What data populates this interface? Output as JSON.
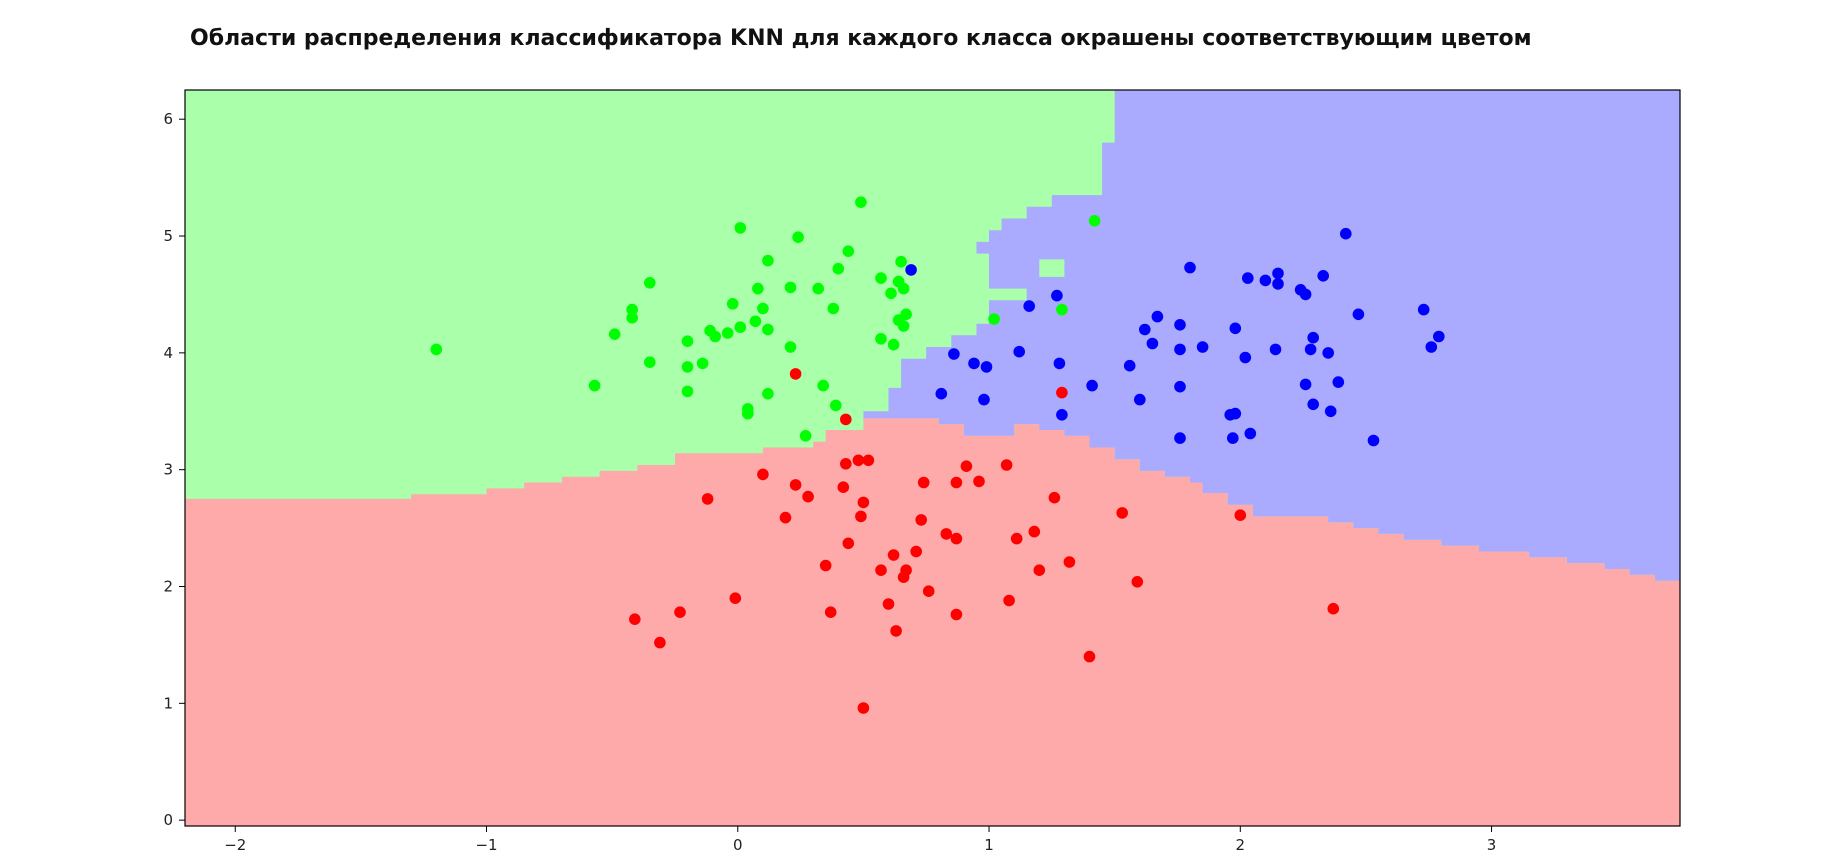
{
  "chart_data": {
    "type": "scatter",
    "title": "Области распределения классификатора KNN для каждого класса окрашены соответствующим цветом",
    "xlabel": "",
    "ylabel": "",
    "xlim": [
      -2.2,
      3.75
    ],
    "ylim": [
      -0.05,
      6.25
    ],
    "x_ticks": [
      -2,
      -1,
      0,
      1,
      2,
      3
    ],
    "y_ticks": [
      0,
      1,
      2,
      3,
      4,
      5,
      6
    ],
    "grid": false,
    "legend": "none",
    "region_colors": {
      "green": "#aaffaa",
      "red": "#ffaaaa",
      "blue": "#aaaaff"
    },
    "point_colors": {
      "green": "#00ff00",
      "red": "#ff0000",
      "blue": "#0000ff"
    },
    "regions": {
      "red_top_boundary": [
        [
          -2.2,
          2.75
        ],
        [
          -1.3,
          2.75
        ],
        [
          -1.3,
          2.79
        ],
        [
          -1.0,
          2.79
        ],
        [
          -1.0,
          2.84
        ],
        [
          -0.85,
          2.84
        ],
        [
          -0.85,
          2.89
        ],
        [
          -0.7,
          2.89
        ],
        [
          -0.7,
          2.94
        ],
        [
          -0.55,
          2.94
        ],
        [
          -0.55,
          2.99
        ],
        [
          -0.4,
          2.99
        ],
        [
          -0.4,
          3.04
        ],
        [
          -0.25,
          3.04
        ],
        [
          -0.25,
          3.14
        ],
        [
          0.1,
          3.14
        ],
        [
          0.1,
          3.19
        ],
        [
          0.3,
          3.19
        ],
        [
          0.3,
          3.24
        ],
        [
          0.35,
          3.24
        ],
        [
          0.35,
          3.34
        ],
        [
          0.5,
          3.34
        ],
        [
          0.5,
          3.44
        ],
        [
          0.8,
          3.44
        ],
        [
          0.8,
          3.39
        ],
        [
          0.9,
          3.39
        ],
        [
          0.9,
          3.29
        ],
        [
          1.1,
          3.29
        ],
        [
          1.1,
          3.39
        ],
        [
          1.2,
          3.39
        ],
        [
          1.2,
          3.34
        ],
        [
          1.3,
          3.34
        ],
        [
          1.3,
          3.29
        ],
        [
          1.4,
          3.29
        ],
        [
          1.4,
          3.19
        ],
        [
          1.5,
          3.19
        ],
        [
          1.5,
          3.09
        ],
        [
          1.6,
          3.09
        ],
        [
          1.6,
          2.99
        ],
        [
          1.7,
          2.99
        ],
        [
          1.7,
          2.94
        ],
        [
          1.8,
          2.94
        ],
        [
          1.8,
          2.89
        ],
        [
          1.85,
          2.89
        ],
        [
          1.85,
          2.8
        ],
        [
          1.95,
          2.8
        ],
        [
          1.95,
          2.7
        ],
        [
          2.05,
          2.7
        ],
        [
          2.05,
          2.6
        ],
        [
          2.35,
          2.6
        ],
        [
          2.35,
          2.55
        ],
        [
          2.45,
          2.55
        ],
        [
          2.45,
          2.5
        ],
        [
          2.55,
          2.5
        ],
        [
          2.55,
          2.45
        ],
        [
          2.65,
          2.45
        ],
        [
          2.65,
          2.4
        ],
        [
          2.8,
          2.4
        ],
        [
          2.8,
          2.35
        ],
        [
          2.95,
          2.35
        ],
        [
          2.95,
          2.3
        ],
        [
          3.15,
          2.3
        ],
        [
          3.15,
          2.25
        ],
        [
          3.3,
          2.25
        ],
        [
          3.3,
          2.2
        ],
        [
          3.45,
          2.2
        ],
        [
          3.45,
          2.15
        ],
        [
          3.55,
          2.15
        ],
        [
          3.55,
          2.1
        ],
        [
          3.65,
          2.1
        ],
        [
          3.65,
          2.05
        ],
        [
          3.75,
          2.05
        ]
      ],
      "blue_left_boundary": [
        [
          3.75,
          6.25
        ],
        [
          1.5,
          6.25
        ],
        [
          1.5,
          5.8
        ],
        [
          1.45,
          5.8
        ],
        [
          1.45,
          5.35
        ],
        [
          1.25,
          5.35
        ],
        [
          1.25,
          5.25
        ],
        [
          1.15,
          5.25
        ],
        [
          1.15,
          5.15
        ],
        [
          1.05,
          5.15
        ],
        [
          1.05,
          5.05
        ],
        [
          1.0,
          5.05
        ],
        [
          1.0,
          4.95
        ],
        [
          0.95,
          4.95
        ],
        [
          0.95,
          4.85
        ],
        [
          1.0,
          4.85
        ],
        [
          1.0,
          4.55
        ],
        [
          1.2,
          4.55
        ],
        [
          1.2,
          4.8
        ],
        [
          1.3,
          4.8
        ],
        [
          1.3,
          4.65
        ],
        [
          1.15,
          4.65
        ],
        [
          1.15,
          4.45
        ],
        [
          1.0,
          4.45
        ],
        [
          1.0,
          4.25
        ],
        [
          0.95,
          4.25
        ],
        [
          0.95,
          4.15
        ],
        [
          0.85,
          4.15
        ],
        [
          0.85,
          4.05
        ],
        [
          0.75,
          4.05
        ],
        [
          0.75,
          3.95
        ],
        [
          0.65,
          3.95
        ],
        [
          0.65,
          3.7
        ],
        [
          0.6,
          3.7
        ],
        [
          0.6,
          3.5
        ],
        [
          0.5,
          3.5
        ],
        [
          0.5,
          3.44
        ],
        [
          0.8,
          3.44
        ],
        [
          0.8,
          3.39
        ],
        [
          0.9,
          3.39
        ],
        [
          0.9,
          3.29
        ],
        [
          1.1,
          3.29
        ],
        [
          1.1,
          3.39
        ],
        [
          1.2,
          3.39
        ],
        [
          1.2,
          3.34
        ],
        [
          1.3,
          3.34
        ],
        [
          1.3,
          3.29
        ],
        [
          1.4,
          3.29
        ],
        [
          1.4,
          3.19
        ],
        [
          1.5,
          3.19
        ],
        [
          1.5,
          3.09
        ],
        [
          1.6,
          3.09
        ],
        [
          1.6,
          2.99
        ],
        [
          1.7,
          2.99
        ],
        [
          1.7,
          2.94
        ],
        [
          1.8,
          2.94
        ],
        [
          1.8,
          2.89
        ],
        [
          1.85,
          2.89
        ],
        [
          1.85,
          2.8
        ],
        [
          1.95,
          2.8
        ],
        [
          1.95,
          2.7
        ],
        [
          2.05,
          2.7
        ],
        [
          2.05,
          2.6
        ],
        [
          2.35,
          2.6
        ],
        [
          2.35,
          2.55
        ],
        [
          2.45,
          2.55
        ],
        [
          2.45,
          2.5
        ],
        [
          2.55,
          2.5
        ],
        [
          2.55,
          2.45
        ],
        [
          2.65,
          2.45
        ],
        [
          2.65,
          2.4
        ],
        [
          2.8,
          2.4
        ],
        [
          2.8,
          2.35
        ],
        [
          2.95,
          2.35
        ],
        [
          2.95,
          2.3
        ],
        [
          3.15,
          2.3
        ],
        [
          3.15,
          2.25
        ],
        [
          3.3,
          2.25
        ],
        [
          3.3,
          2.2
        ],
        [
          3.45,
          2.2
        ],
        [
          3.45,
          2.15
        ],
        [
          3.55,
          2.15
        ],
        [
          3.55,
          2.1
        ],
        [
          3.65,
          2.1
        ],
        [
          3.65,
          2.05
        ],
        [
          3.75,
          2.05
        ]
      ]
    },
    "series": [
      {
        "color": "green",
        "points": [
          [
            -1.2,
            4.03
          ],
          [
            -0.57,
            3.72
          ],
          [
            -0.49,
            4.16
          ],
          [
            -0.42,
            4.37
          ],
          [
            -0.42,
            4.3
          ],
          [
            -0.35,
            4.6
          ],
          [
            -0.35,
            3.92
          ],
          [
            -0.2,
            4.1
          ],
          [
            -0.2,
            3.88
          ],
          [
            -0.2,
            3.67
          ],
          [
            -0.14,
            3.91
          ],
          [
            -0.11,
            4.19
          ],
          [
            -0.09,
            4.14
          ],
          [
            -0.04,
            4.17
          ],
          [
            -0.02,
            4.42
          ],
          [
            0.01,
            4.22
          ],
          [
            0.01,
            5.07
          ],
          [
            0.04,
            3.52
          ],
          [
            0.04,
            3.48
          ],
          [
            0.07,
            4.27
          ],
          [
            0.08,
            4.55
          ],
          [
            0.1,
            4.38
          ],
          [
            0.12,
            4.2
          ],
          [
            0.12,
            4.79
          ],
          [
            0.12,
            3.65
          ],
          [
            0.21,
            4.56
          ],
          [
            0.21,
            4.05
          ],
          [
            0.24,
            4.99
          ],
          [
            0.27,
            3.29
          ],
          [
            0.32,
            4.55
          ],
          [
            0.34,
            3.72
          ],
          [
            0.38,
            4.38
          ],
          [
            0.39,
            3.55
          ],
          [
            0.4,
            4.72
          ],
          [
            0.44,
            4.87
          ],
          [
            0.49,
            5.29
          ],
          [
            0.57,
            4.64
          ],
          [
            0.57,
            4.12
          ],
          [
            0.61,
            4.51
          ],
          [
            0.62,
            4.07
          ],
          [
            0.64,
            4.61
          ],
          [
            0.64,
            4.28
          ],
          [
            0.65,
            4.78
          ],
          [
            0.66,
            4.55
          ],
          [
            0.66,
            4.23
          ],
          [
            0.67,
            4.33
          ],
          [
            1.02,
            4.29
          ],
          [
            1.29,
            4.37
          ],
          [
            1.42,
            5.13
          ]
        ]
      },
      {
        "color": "red",
        "points": [
          [
            -0.41,
            1.72
          ],
          [
            -0.31,
            1.52
          ],
          [
            -0.23,
            1.78
          ],
          [
            -0.12,
            2.75
          ],
          [
            -0.01,
            1.9
          ],
          [
            0.1,
            2.96
          ],
          [
            0.19,
            2.59
          ],
          [
            0.23,
            3.82
          ],
          [
            0.23,
            2.87
          ],
          [
            0.28,
            2.77
          ],
          [
            0.35,
            2.18
          ],
          [
            0.37,
            1.78
          ],
          [
            0.42,
            2.85
          ],
          [
            0.43,
            3.43
          ],
          [
            0.43,
            3.05
          ],
          [
            0.44,
            2.37
          ],
          [
            0.48,
            3.08
          ],
          [
            0.49,
            2.6
          ],
          [
            0.5,
            2.72
          ],
          [
            0.5,
            0.96
          ],
          [
            0.52,
            3.08
          ],
          [
            0.57,
            2.14
          ],
          [
            0.6,
            1.85
          ],
          [
            0.62,
            2.27
          ],
          [
            0.63,
            1.62
          ],
          [
            0.66,
            2.08
          ],
          [
            0.67,
            2.14
          ],
          [
            0.71,
            2.3
          ],
          [
            0.73,
            2.57
          ],
          [
            0.74,
            2.89
          ],
          [
            0.76,
            1.96
          ],
          [
            0.83,
            2.45
          ],
          [
            0.87,
            2.89
          ],
          [
            0.87,
            2.41
          ],
          [
            0.87,
            1.76
          ],
          [
            0.91,
            3.03
          ],
          [
            0.96,
            2.9
          ],
          [
            1.07,
            3.04
          ],
          [
            1.08,
            1.88
          ],
          [
            1.11,
            2.41
          ],
          [
            1.18,
            2.47
          ],
          [
            1.2,
            2.14
          ],
          [
            1.26,
            2.76
          ],
          [
            1.29,
            3.66
          ],
          [
            1.32,
            2.21
          ],
          [
            1.4,
            1.4
          ],
          [
            1.53,
            2.63
          ],
          [
            1.59,
            2.04
          ],
          [
            2.0,
            2.61
          ],
          [
            2.37,
            1.81
          ]
        ]
      },
      {
        "color": "blue",
        "points": [
          [
            0.69,
            4.71
          ],
          [
            0.81,
            3.65
          ],
          [
            0.86,
            3.99
          ],
          [
            0.94,
            3.91
          ],
          [
            0.98,
            3.6
          ],
          [
            0.99,
            3.88
          ],
          [
            1.12,
            4.01
          ],
          [
            1.16,
            4.4
          ],
          [
            1.27,
            4.49
          ],
          [
            1.28,
            3.91
          ],
          [
            1.29,
            3.47
          ],
          [
            1.41,
            3.72
          ],
          [
            1.56,
            3.89
          ],
          [
            1.6,
            3.6
          ],
          [
            1.62,
            4.2
          ],
          [
            1.65,
            4.08
          ],
          [
            1.67,
            4.31
          ],
          [
            1.76,
            4.24
          ],
          [
            1.76,
            4.03
          ],
          [
            1.76,
            3.71
          ],
          [
            1.76,
            3.27
          ],
          [
            1.8,
            4.73
          ],
          [
            1.85,
            4.05
          ],
          [
            1.96,
            3.47
          ],
          [
            1.97,
            3.27
          ],
          [
            1.98,
            4.21
          ],
          [
            1.98,
            3.48
          ],
          [
            2.02,
            3.96
          ],
          [
            2.03,
            4.64
          ],
          [
            2.04,
            3.31
          ],
          [
            2.1,
            4.62
          ],
          [
            2.14,
            4.03
          ],
          [
            2.15,
            4.59
          ],
          [
            2.15,
            4.68
          ],
          [
            2.24,
            4.54
          ],
          [
            2.26,
            4.5
          ],
          [
            2.26,
            3.73
          ],
          [
            2.28,
            4.03
          ],
          [
            2.29,
            4.13
          ],
          [
            2.29,
            3.56
          ],
          [
            2.33,
            4.66
          ],
          [
            2.35,
            4.0
          ],
          [
            2.36,
            3.5
          ],
          [
            2.39,
            3.75
          ],
          [
            2.42,
            5.02
          ],
          [
            2.47,
            4.33
          ],
          [
            2.53,
            3.25
          ],
          [
            2.73,
            4.37
          ],
          [
            2.76,
            4.05
          ],
          [
            2.79,
            4.14
          ]
        ]
      }
    ]
  }
}
